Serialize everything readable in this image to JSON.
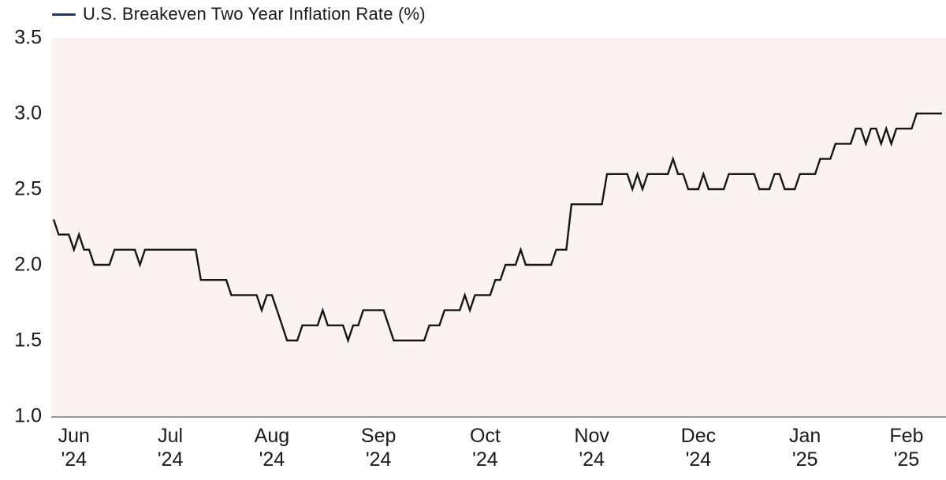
{
  "legend": {
    "label": "U.S. Breakeven Two Year Inflation Rate (%)"
  },
  "chart_data": {
    "type": "line",
    "title": "U.S. Breakeven Two Year Inflation Rate (%)",
    "ylabel": "",
    "xlabel": "",
    "ylim": [
      1.0,
      3.5
    ],
    "y_ticks": [
      3.5,
      3.0,
      2.5,
      2.0,
      1.5,
      1.0
    ],
    "y_tick_labels": [
      "3.5",
      "3.0",
      "2.5",
      "2.0",
      "1.5",
      "1.0"
    ],
    "grid": false,
    "legend_position": "top-left",
    "x_ticks": [
      {
        "month": "Jun",
        "year": "'24",
        "index": 4
      },
      {
        "month": "Jul",
        "year": "'24",
        "index": 23
      },
      {
        "month": "Aug",
        "year": "'24",
        "index": 43
      },
      {
        "month": "Sep",
        "year": "'24",
        "index": 64
      },
      {
        "month": "Oct",
        "year": "'24",
        "index": 85
      },
      {
        "month": "Nov",
        "year": "'24",
        "index": 106
      },
      {
        "month": "Dec",
        "year": "'24",
        "index": 127
      },
      {
        "month": "Jan",
        "year": "'25",
        "index": 148
      },
      {
        "month": "Feb",
        "year": "'25",
        "index": 168
      }
    ],
    "series": [
      {
        "name": "U.S. Breakeven Two Year Inflation Rate (%)",
        "values": [
          2.3,
          2.2,
          2.2,
          2.2,
          2.1,
          2.2,
          2.1,
          2.1,
          2.0,
          2.0,
          2.0,
          2.0,
          2.1,
          2.1,
          2.1,
          2.1,
          2.1,
          2.0,
          2.1,
          2.1,
          2.1,
          2.1,
          2.1,
          2.1,
          2.1,
          2.1,
          2.1,
          2.1,
          2.1,
          1.9,
          1.9,
          1.9,
          1.9,
          1.9,
          1.9,
          1.8,
          1.8,
          1.8,
          1.8,
          1.8,
          1.8,
          1.7,
          1.8,
          1.8,
          1.7,
          1.6,
          1.5,
          1.5,
          1.5,
          1.6,
          1.6,
          1.6,
          1.6,
          1.7,
          1.6,
          1.6,
          1.6,
          1.6,
          1.5,
          1.6,
          1.6,
          1.7,
          1.7,
          1.7,
          1.7,
          1.7,
          1.6,
          1.5,
          1.5,
          1.5,
          1.5,
          1.5,
          1.5,
          1.5,
          1.6,
          1.6,
          1.6,
          1.7,
          1.7,
          1.7,
          1.7,
          1.8,
          1.7,
          1.8,
          1.8,
          1.8,
          1.8,
          1.9,
          1.9,
          2.0,
          2.0,
          2.0,
          2.1,
          2.0,
          2.0,
          2.0,
          2.0,
          2.0,
          2.0,
          2.1,
          2.1,
          2.1,
          2.4,
          2.4,
          2.4,
          2.4,
          2.4,
          2.4,
          2.4,
          2.6,
          2.6,
          2.6,
          2.6,
          2.6,
          2.5,
          2.6,
          2.5,
          2.6,
          2.6,
          2.6,
          2.6,
          2.6,
          2.7,
          2.6,
          2.6,
          2.5,
          2.5,
          2.5,
          2.6,
          2.5,
          2.5,
          2.5,
          2.5,
          2.6,
          2.6,
          2.6,
          2.6,
          2.6,
          2.6,
          2.5,
          2.5,
          2.5,
          2.6,
          2.6,
          2.5,
          2.5,
          2.5,
          2.6,
          2.6,
          2.6,
          2.6,
          2.7,
          2.7,
          2.7,
          2.8,
          2.8,
          2.8,
          2.8,
          2.9,
          2.9,
          2.8,
          2.9,
          2.9,
          2.8,
          2.9,
          2.8,
          2.9,
          2.9,
          2.9,
          2.9,
          3.0,
          3.0,
          3.0,
          3.0,
          3.0,
          3.0
        ]
      }
    ],
    "colors": {
      "line": "#161616",
      "legend_swatch": "#22375e",
      "plot_bg": "#fbf3f1",
      "axis": "#9a9a9a",
      "text": "#1a1a1a"
    }
  }
}
